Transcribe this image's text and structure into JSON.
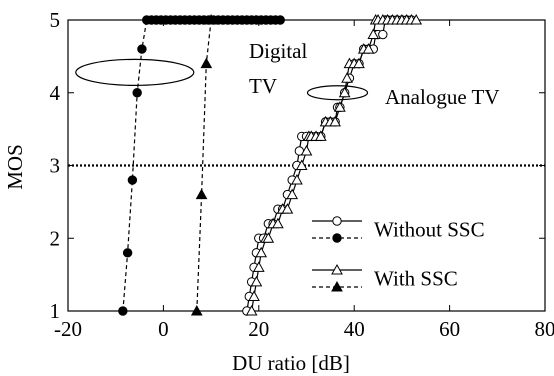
{
  "chart_data": {
    "type": "line",
    "xlabel": "DU ratio [dB]",
    "ylabel": "MOS",
    "xlim": [
      -20,
      80
    ],
    "ylim": [
      1,
      5
    ],
    "xticks": [
      "-20",
      "0",
      "20",
      "40",
      "60",
      "80"
    ],
    "yticks": [
      "1",
      "2",
      "3",
      "4",
      "5"
    ],
    "xtick_values": [
      -20,
      0,
      20,
      40,
      60,
      80
    ],
    "ytick_values": [
      1,
      2,
      3,
      4,
      5
    ],
    "reference_line": {
      "y": 3,
      "style": "dotted"
    },
    "legend": {
      "placement": "bottom-right",
      "entries": [
        {
          "label": "Without SSC",
          "marker": "circle"
        },
        {
          "label": "With SSC",
          "marker": "triangle"
        }
      ]
    },
    "annotations": [
      {
        "lines": [
          "Digital",
          "TV"
        ],
        "target": "digital"
      },
      {
        "lines": [
          "Analogue TV"
        ],
        "target": "analogue"
      }
    ],
    "series": [
      {
        "group": "digital",
        "ssc": false,
        "line": "dashed",
        "marker": "circle",
        "filled": true,
        "points": [
          [
            -8.5,
            1.0
          ],
          [
            -7.5,
            1.8
          ],
          [
            -6.5,
            2.8
          ],
          [
            -5.5,
            4.0
          ],
          [
            -4.5,
            4.6
          ],
          [
            -3.5,
            5.0
          ],
          [
            -2.5,
            5.0
          ],
          [
            -1.5,
            5.0
          ],
          [
            -0.5,
            5.0
          ],
          [
            0.5,
            5.0
          ],
          [
            1.5,
            5.0
          ],
          [
            2.5,
            5.0
          ],
          [
            3.5,
            5.0
          ],
          [
            4.5,
            5.0
          ],
          [
            5.5,
            5.0
          ],
          [
            6.5,
            5.0
          ],
          [
            7.5,
            5.0
          ],
          [
            8.5,
            5.0
          ],
          [
            9.5,
            5.0
          ],
          [
            10.5,
            5.0
          ],
          [
            11.5,
            5.0
          ],
          [
            12.5,
            5.0
          ],
          [
            13.5,
            5.0
          ],
          [
            14.5,
            5.0
          ],
          [
            15.5,
            5.0
          ],
          [
            16.5,
            5.0
          ],
          [
            17.5,
            5.0
          ],
          [
            18.5,
            5.0
          ],
          [
            19.5,
            5.0
          ],
          [
            20.5,
            5.0
          ],
          [
            21.5,
            5.0
          ],
          [
            22.5,
            5.0
          ],
          [
            23.5,
            5.0
          ],
          [
            24.5,
            5.0
          ]
        ]
      },
      {
        "group": "digital",
        "ssc": true,
        "line": "dashed",
        "marker": "triangle",
        "filled": true,
        "points": [
          [
            7.0,
            1.0
          ],
          [
            8.0,
            2.6
          ],
          [
            9.0,
            4.4
          ],
          [
            10.0,
            5.0
          ]
        ]
      },
      {
        "group": "analogue",
        "ssc": false,
        "line": "solid",
        "marker": "circle",
        "filled": false,
        "points": [
          [
            17.5,
            1.0
          ],
          [
            18.0,
            1.2
          ],
          [
            18.5,
            1.4
          ],
          [
            19.0,
            1.6
          ],
          [
            19.5,
            1.8
          ],
          [
            20.0,
            2.0
          ],
          [
            21.0,
            2.0
          ],
          [
            22.0,
            2.2
          ],
          [
            23.0,
            2.2
          ],
          [
            24.0,
            2.4
          ],
          [
            25.0,
            2.4
          ],
          [
            26.0,
            2.6
          ],
          [
            27.0,
            2.8
          ],
          [
            28.0,
            3.0
          ],
          [
            28.5,
            3.2
          ],
          [
            29.0,
            3.4
          ],
          [
            30.0,
            3.4
          ],
          [
            31.0,
            3.4
          ],
          [
            32.0,
            3.4
          ],
          [
            33.0,
            3.4
          ],
          [
            34.0,
            3.6
          ],
          [
            35.0,
            3.6
          ],
          [
            36.0,
            3.6
          ],
          [
            36.5,
            3.8
          ],
          [
            37.0,
            3.8
          ],
          [
            38.0,
            4.0
          ],
          [
            39.0,
            4.2
          ],
          [
            40.0,
            4.4
          ],
          [
            41.0,
            4.4
          ],
          [
            42.0,
            4.6
          ],
          [
            43.0,
            4.6
          ],
          [
            44.0,
            4.6
          ],
          [
            44.5,
            4.8
          ],
          [
            45.0,
            4.8
          ],
          [
            46.0,
            4.8
          ],
          [
            46.5,
            5.0
          ],
          [
            47.0,
            5.0
          ],
          [
            48.0,
            5.0
          ],
          [
            49.0,
            5.0
          ],
          [
            50.0,
            5.0
          ],
          [
            51.0,
            5.0
          ],
          [
            52.0,
            5.0
          ]
        ]
      },
      {
        "group": "analogue",
        "ssc": true,
        "line": "solid",
        "marker": "triangle",
        "filled": false,
        "points": [
          [
            18.5,
            1.0
          ],
          [
            19.0,
            1.2
          ],
          [
            19.5,
            1.4
          ],
          [
            20.0,
            1.6
          ],
          [
            20.5,
            1.8
          ],
          [
            21.5,
            2.0
          ],
          [
            22.0,
            2.0
          ],
          [
            23.0,
            2.2
          ],
          [
            24.0,
            2.2
          ],
          [
            25.0,
            2.4
          ],
          [
            26.0,
            2.4
          ],
          [
            27.0,
            2.6
          ],
          [
            28.0,
            2.8
          ],
          [
            29.0,
            3.0
          ],
          [
            30.0,
            3.2
          ],
          [
            30.5,
            3.4
          ],
          [
            31.0,
            3.4
          ],
          [
            32.0,
            3.4
          ],
          [
            33.0,
            3.4
          ],
          [
            34.0,
            3.6
          ],
          [
            35.0,
            3.6
          ],
          [
            36.0,
            3.6
          ],
          [
            37.0,
            3.8
          ],
          [
            38.0,
            4.0
          ],
          [
            38.5,
            4.2
          ],
          [
            39.0,
            4.4
          ],
          [
            40.0,
            4.4
          ],
          [
            41.0,
            4.4
          ],
          [
            42.0,
            4.6
          ],
          [
            43.0,
            4.6
          ],
          [
            44.0,
            4.8
          ],
          [
            44.5,
            5.0
          ],
          [
            45.0,
            5.0
          ],
          [
            46.0,
            5.0
          ],
          [
            47.0,
            5.0
          ],
          [
            48.0,
            5.0
          ],
          [
            49.0,
            5.0
          ],
          [
            50.0,
            5.0
          ],
          [
            51.0,
            5.0
          ],
          [
            52.0,
            5.0
          ],
          [
            53.0,
            5.0
          ]
        ]
      }
    ],
    "colors": {
      "ink": "#000000",
      "background": "#ffffff"
    }
  }
}
